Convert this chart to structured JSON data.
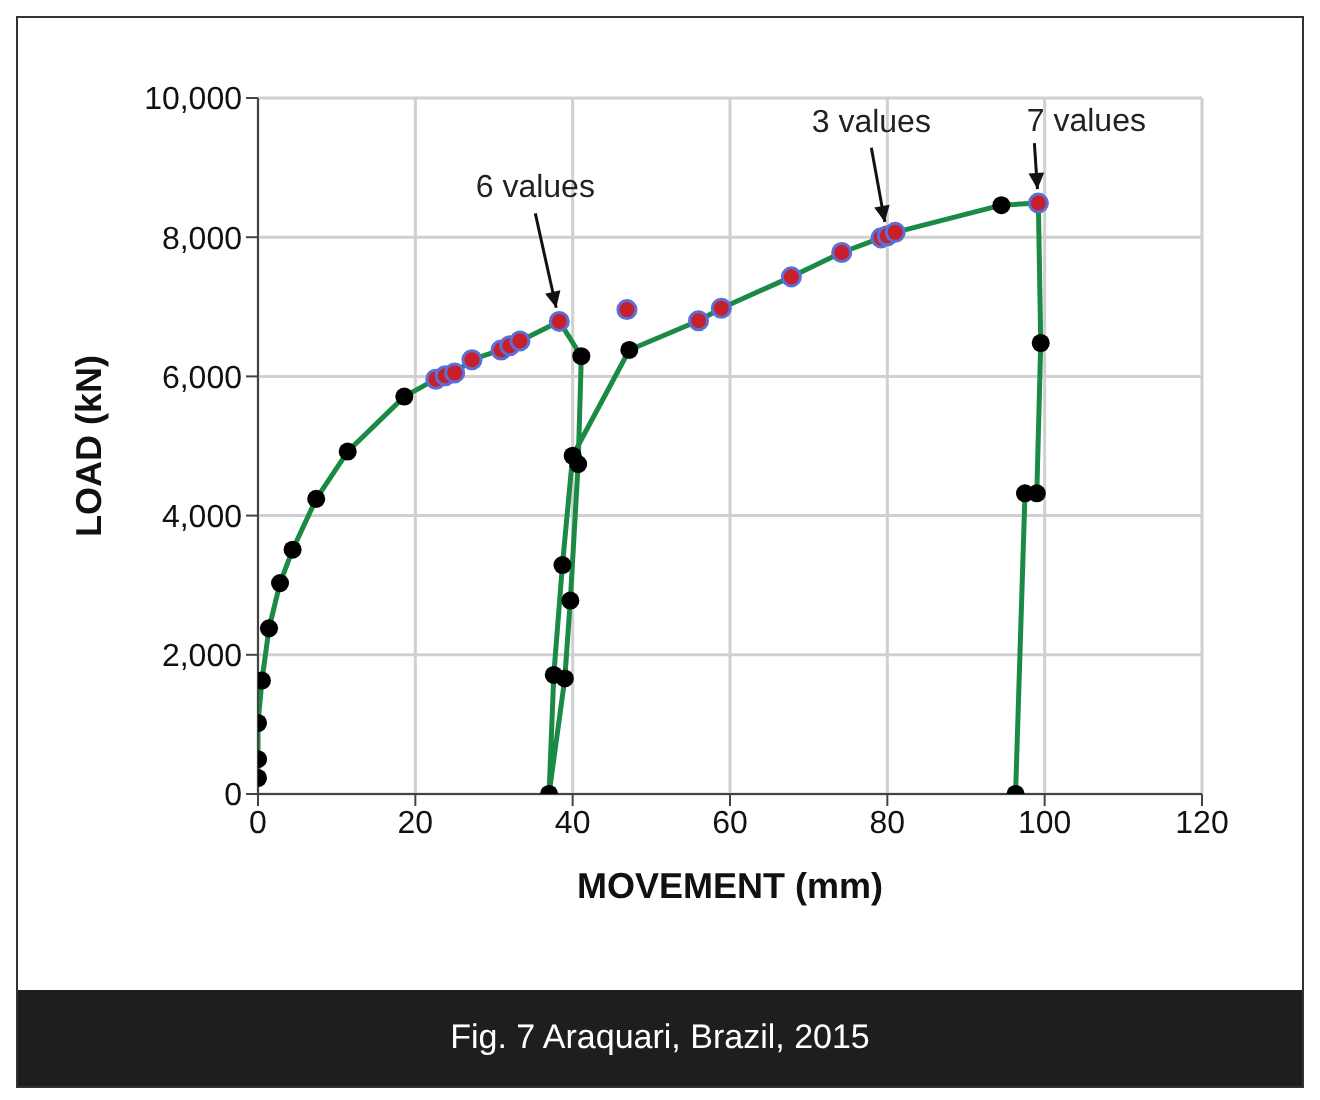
{
  "chart_data": {
    "type": "line",
    "xlabel": "MOVEMENT (mm)",
    "ylabel": "LOAD (kN)",
    "xlim": [
      0,
      120
    ],
    "xticks": [
      0,
      20,
      40,
      60,
      80,
      100,
      120
    ],
    "ylim": [
      0,
      10000
    ],
    "yticks": [
      {
        "value": 0,
        "label": "0"
      },
      {
        "value": 2000,
        "label": "2,000"
      },
      {
        "value": 4000,
        "label": "4,000"
      },
      {
        "value": 6000,
        "label": "6,000"
      },
      {
        "value": 8000,
        "label": "8,000"
      },
      {
        "value": 10000,
        "label": "10,000"
      }
    ],
    "grid": true,
    "series": [
      {
        "color": "#1a8a44",
        "marker": "none",
        "x": [
          0,
          0,
          0,
          0.5,
          1.4,
          2.8,
          4.4,
          7.4,
          11.4,
          18.6,
          22.6,
          23.8,
          25.0,
          27.2,
          30.9,
          32.0,
          33.3,
          38.3,
          41.1,
          40.7,
          39.7,
          39.0,
          37.0,
          37.6,
          38.7,
          40.0,
          47.2,
          56.0,
          58.9,
          67.8,
          74.2,
          79.2,
          80.0,
          81.0,
          94.5,
          99.2,
          99.5,
          99.0,
          97.5,
          96.3
        ],
        "values": [
          230,
          500,
          1020,
          1630,
          2380,
          3030,
          3510,
          4240,
          4920,
          5710,
          5960,
          6010,
          6050,
          6240,
          6380,
          6440,
          6510,
          6790,
          6290,
          4740,
          2780,
          1660,
          0,
          1710,
          3290,
          4860,
          6380,
          6800,
          6980,
          7430,
          7780,
          7990,
          8020,
          8070,
          8460,
          8490,
          6480,
          4320,
          4320,
          0
        ]
      },
      {
        "type": "scatter",
        "color": "#000000",
        "marker": "circle",
        "x": [
          0,
          0,
          0,
          0.5,
          1.4,
          2.8,
          4.4,
          7.4,
          11.4,
          18.6,
          41.1,
          40.7,
          40.0,
          39.7,
          38.7,
          39.0,
          37.6,
          37.0,
          47.2,
          94.5,
          99.5,
          99.0,
          97.5,
          96.3
        ],
        "values": [
          230,
          500,
          1020,
          1630,
          2380,
          3030,
          3510,
          4240,
          4920,
          5710,
          6290,
          4740,
          4860,
          2780,
          3290,
          1660,
          1710,
          0,
          6380,
          8460,
          6480,
          4320,
          4320,
          0
        ]
      },
      {
        "type": "scatter",
        "color": "#c8202a",
        "marker": "circle",
        "x": [
          22.6,
          23.8,
          25.0,
          27.2,
          30.9,
          32.0,
          33.3,
          38.3,
          46.9,
          56.0,
          58.9,
          67.8,
          74.2,
          79.2,
          80.0,
          81.0,
          99.2
        ],
        "values": [
          5960,
          6010,
          6050,
          6240,
          6380,
          6440,
          6510,
          6790,
          6960,
          6800,
          6980,
          7430,
          7780,
          7990,
          8020,
          8070,
          8490
        ]
      }
    ],
    "annotations": [
      {
        "text": "6 values",
        "x": 38.3,
        "y": 6790
      },
      {
        "text": "3 values",
        "x": 80.0,
        "y": 8020
      },
      {
        "text": "7 values",
        "x": 99.2,
        "y": 8490
      },
      "Fig. 7 Araquari, Brazil, 2015"
    ]
  }
}
